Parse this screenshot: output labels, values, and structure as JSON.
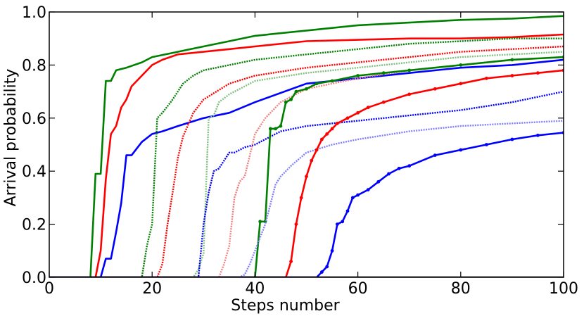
{
  "chart_data": {
    "type": "line",
    "xlabel": "Steps number",
    "ylabel": "Arrival probability",
    "xlim": [
      0,
      100
    ],
    "ylim": [
      0,
      1.0
    ],
    "x_ticks": [
      "0",
      "20",
      "40",
      "60",
      "80",
      "100"
    ],
    "y_ticks": [
      "0.0",
      "0.2",
      "0.4",
      "0.6",
      "0.8",
      "1.0"
    ],
    "grid": false,
    "series": [
      {
        "color": "#008000",
        "style": "solid",
        "x": [
          8,
          9,
          10,
          11,
          12,
          13,
          15,
          18,
          20,
          25,
          30,
          35,
          40,
          50,
          60,
          70,
          80,
          90,
          100
        ],
        "y": [
          0,
          0.39,
          0.39,
          0.74,
          0.74,
          0.78,
          0.79,
          0.81,
          0.83,
          0.85,
          0.87,
          0.89,
          0.91,
          0.93,
          0.95,
          0.96,
          0.97,
          0.975,
          0.985
        ]
      },
      {
        "color": "#ff0000",
        "style": "solid",
        "x": [
          9,
          10,
          11,
          12,
          13,
          14,
          15,
          16,
          18,
          20,
          22,
          25,
          30,
          35,
          40,
          50,
          60,
          70,
          80,
          90,
          100
        ],
        "y": [
          0,
          0.1,
          0.37,
          0.54,
          0.57,
          0.64,
          0.67,
          0.72,
          0.76,
          0.8,
          0.82,
          0.84,
          0.85,
          0.86,
          0.87,
          0.89,
          0.895,
          0.9,
          0.9,
          0.905,
          0.915
        ]
      },
      {
        "color": "#0000ff",
        "style": "solid",
        "x": [
          10,
          11,
          12,
          13,
          14,
          15,
          16,
          18,
          20,
          22,
          25,
          30,
          35,
          40,
          50,
          60,
          70,
          80,
          90,
          100
        ],
        "y": [
          0,
          0.07,
          0.07,
          0.17,
          0.28,
          0.46,
          0.46,
          0.51,
          0.54,
          0.55,
          0.57,
          0.6,
          0.62,
          0.66,
          0.73,
          0.75,
          0.77,
          0.79,
          0.8,
          0.82
        ]
      },
      {
        "color": "#008000",
        "style": "dotted",
        "x": [
          18,
          19,
          20,
          21,
          22,
          24,
          26,
          28,
          30,
          35,
          40,
          50,
          60,
          70,
          80,
          90,
          100
        ],
        "y": [
          0,
          0.12,
          0.2,
          0.6,
          0.62,
          0.67,
          0.73,
          0.76,
          0.78,
          0.8,
          0.82,
          0.84,
          0.86,
          0.88,
          0.89,
          0.9,
          0.9
        ]
      },
      {
        "color": "#ff0000",
        "style": "dotted",
        "x": [
          21,
          22,
          23,
          24,
          25,
          26,
          28,
          30,
          35,
          40,
          50,
          60,
          70,
          80,
          90,
          100
        ],
        "y": [
          0,
          0.05,
          0.2,
          0.32,
          0.45,
          0.53,
          0.62,
          0.67,
          0.73,
          0.76,
          0.79,
          0.81,
          0.83,
          0.85,
          0.86,
          0.87
        ]
      },
      {
        "color": "#80c080",
        "style": "dotted",
        "x": [
          28,
          29,
          30,
          31,
          32,
          33,
          35,
          38,
          40,
          50,
          60,
          70,
          80,
          90,
          100
        ],
        "y": [
          0,
          0.03,
          0.09,
          0.6,
          0.61,
          0.66,
          0.69,
          0.72,
          0.74,
          0.77,
          0.79,
          0.81,
          0.83,
          0.84,
          0.85
        ]
      },
      {
        "color": "#0000ff",
        "style": "dotted",
        "x": [
          29,
          30,
          31,
          32,
          33,
          34,
          35,
          36,
          38,
          40,
          45,
          50,
          60,
          70,
          80,
          90,
          100
        ],
        "y": [
          0,
          0.2,
          0.32,
          0.4,
          0.41,
          0.44,
          0.47,
          0.47,
          0.49,
          0.5,
          0.55,
          0.57,
          0.59,
          0.61,
          0.63,
          0.66,
          0.7
        ]
      },
      {
        "color": "#f08080",
        "style": "dotted",
        "x": [
          33,
          34,
          35,
          36,
          37,
          38,
          40,
          42,
          45,
          50,
          60,
          70,
          80,
          90,
          100
        ],
        "y": [
          0,
          0.05,
          0.12,
          0.3,
          0.36,
          0.38,
          0.54,
          0.6,
          0.66,
          0.71,
          0.75,
          0.78,
          0.8,
          0.82,
          0.83
        ]
      },
      {
        "color": "#008000",
        "style": "solid-markers",
        "x": [
          40,
          41,
          42,
          43,
          44,
          45,
          46,
          47,
          48,
          50,
          52,
          55,
          60,
          65,
          70,
          80,
          90,
          100
        ],
        "y": [
          0,
          0.21,
          0.21,
          0.56,
          0.56,
          0.57,
          0.66,
          0.67,
          0.7,
          0.71,
          0.73,
          0.74,
          0.76,
          0.77,
          0.78,
          0.8,
          0.82,
          0.83
        ]
      },
      {
        "color": "#8080ff",
        "style": "dotted",
        "x": [
          37,
          38,
          39,
          40,
          42,
          44,
          45,
          47,
          50,
          55,
          60,
          70,
          80,
          90,
          100
        ],
        "y": [
          0,
          0.01,
          0.05,
          0.1,
          0.2,
          0.35,
          0.38,
          0.42,
          0.47,
          0.5,
          0.52,
          0.55,
          0.57,
          0.58,
          0.59
        ]
      },
      {
        "color": "#ff0000",
        "style": "solid-markers",
        "x": [
          46,
          47,
          48,
          49,
          50,
          51,
          52,
          53,
          54,
          55,
          56,
          58,
          60,
          62,
          65,
          70,
          75,
          80,
          85,
          90,
          95,
          100
        ],
        "y": [
          0,
          0.06,
          0.2,
          0.3,
          0.38,
          0.44,
          0.48,
          0.52,
          0.54,
          0.56,
          0.58,
          0.6,
          0.62,
          0.64,
          0.66,
          0.69,
          0.71,
          0.73,
          0.75,
          0.76,
          0.77,
          0.78
        ]
      },
      {
        "color": "#0000ff",
        "style": "solid-markers",
        "x": [
          52,
          53,
          54,
          55,
          56,
          57,
          58,
          59,
          60,
          62,
          64,
          66,
          68,
          70,
          75,
          80,
          85,
          90,
          95,
          100
        ],
        "y": [
          0,
          0.02,
          0.04,
          0.1,
          0.2,
          0.21,
          0.25,
          0.3,
          0.31,
          0.33,
          0.36,
          0.39,
          0.41,
          0.42,
          0.46,
          0.48,
          0.5,
          0.52,
          0.535,
          0.545
        ]
      }
    ]
  }
}
